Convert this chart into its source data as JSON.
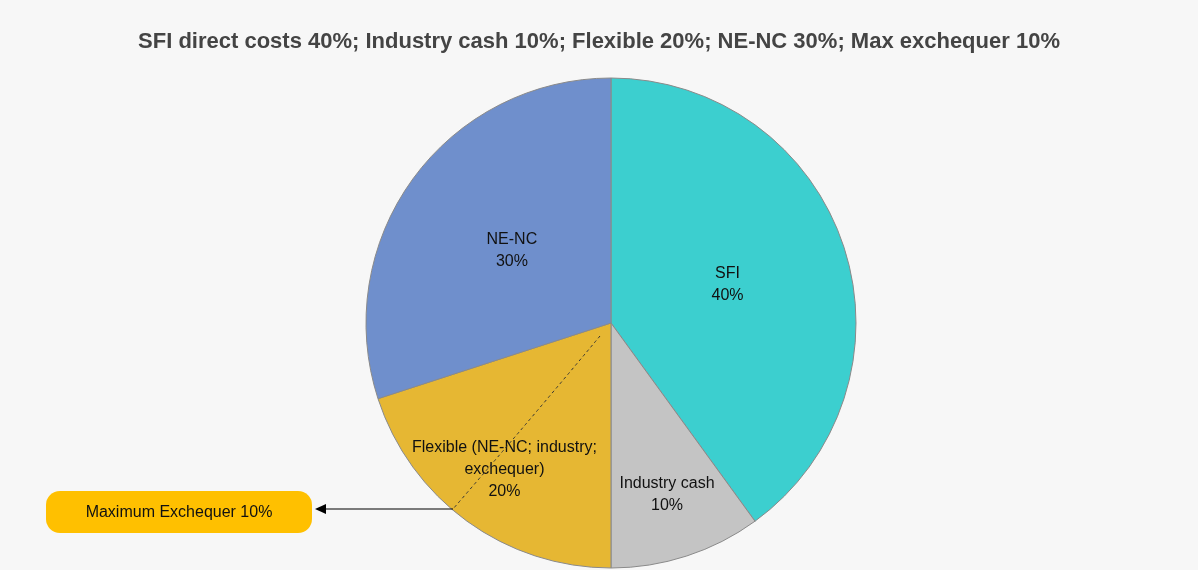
{
  "chart_data": {
    "type": "pie",
    "title": "SFI direct costs 40%; Industry cash 10%; Flexible 20%; NE-NC 30%; Max exchequer 10%",
    "categories": [
      "SFI",
      "Industry cash",
      "Flexible (NE-NC; industry; exchequer)",
      "NE-NC"
    ],
    "values": [
      40,
      10,
      20,
      30
    ],
    "value_labels": [
      "40%",
      "10%",
      "20%",
      "30%"
    ],
    "colors": [
      "#3ccfcf",
      "#c4c4c4",
      "#e6b733",
      "#6f8fcc"
    ],
    "legend": false,
    "annotations": [
      "Maximum Exchequer 10%"
    ]
  }
}
